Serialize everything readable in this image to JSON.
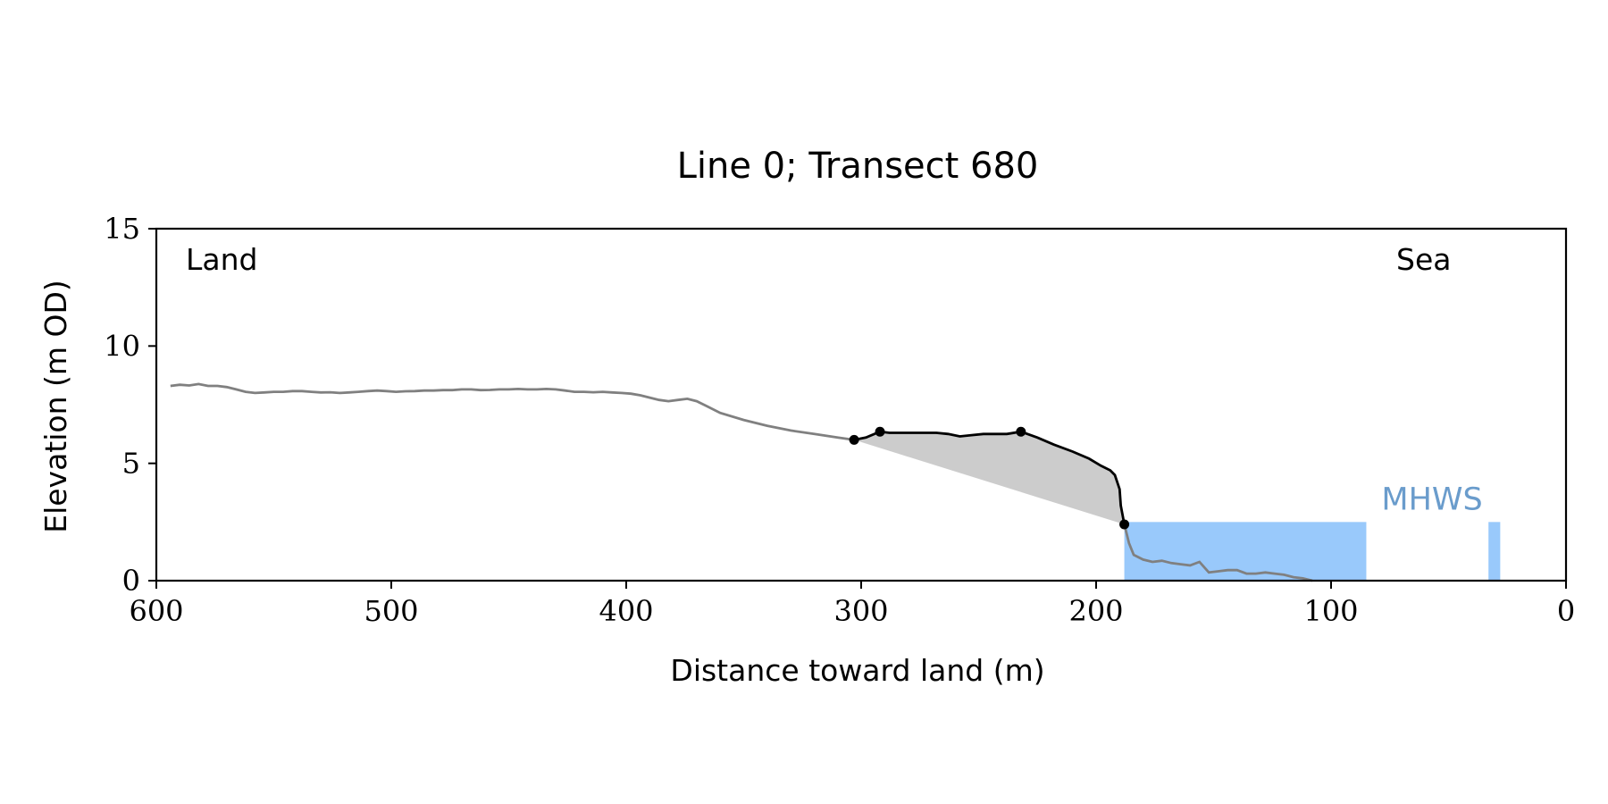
{
  "chart_data": {
    "type": "line",
    "title": "Line 0; Transect 680",
    "xlabel": "Distance toward land (m)",
    "ylabel": "Elevation (m OD)",
    "xlim": [
      600,
      0
    ],
    "ylim": [
      0,
      15
    ],
    "xticks": [
      600,
      500,
      400,
      300,
      200,
      100,
      0
    ],
    "yticks": [
      0,
      5,
      10,
      15
    ],
    "grid": false,
    "annotations": {
      "land": "Land",
      "sea": "Sea",
      "mhws": "MHWS"
    },
    "colors": {
      "profile": "#808080",
      "feature": "#000000",
      "fill": "#cccccc",
      "water": "#99c9fb",
      "mhws_text": "#6a9ccc"
    },
    "mhws_level": 2.5,
    "water_segments": [
      [
        188,
        85
      ],
      [
        33,
        28
      ]
    ],
    "series": [
      {
        "x": [
          594,
          590,
          586,
          582,
          578,
          574,
          570,
          566,
          562,
          558,
          554,
          550,
          546,
          542,
          538,
          534,
          530,
          526,
          522,
          518,
          514,
          510,
          506,
          502,
          498,
          494,
          490,
          486,
          482,
          478,
          474,
          470,
          466,
          462,
          458,
          454,
          450,
          446,
          442,
          438,
          434,
          430,
          426,
          422,
          418,
          414,
          410,
          406,
          402,
          398,
          394,
          390,
          386,
          382,
          378,
          374,
          370,
          366,
          360,
          350,
          340,
          330,
          320,
          310,
          303
        ],
        "y": [
          8.3,
          8.35,
          8.32,
          8.38,
          8.3,
          8.3,
          8.25,
          8.15,
          8.05,
          8.0,
          8.02,
          8.05,
          8.05,
          8.08,
          8.08,
          8.05,
          8.02,
          8.03,
          8.0,
          8.02,
          8.05,
          8.08,
          8.1,
          8.08,
          8.05,
          8.07,
          8.08,
          8.1,
          8.1,
          8.12,
          8.12,
          8.15,
          8.15,
          8.12,
          8.13,
          8.15,
          8.15,
          8.17,
          8.15,
          8.15,
          8.17,
          8.15,
          8.1,
          8.05,
          8.05,
          8.03,
          8.05,
          8.02,
          8.0,
          7.97,
          7.9,
          7.8,
          7.7,
          7.65,
          7.7,
          7.75,
          7.65,
          7.45,
          7.15,
          6.85,
          6.6,
          6.4,
          6.25,
          6.1,
          6.0
        ]
      },
      {
        "x": [
          303,
          298,
          292,
          288,
          283,
          278,
          273,
          268,
          263,
          258,
          253,
          248,
          243,
          238,
          232,
          225,
          218,
          210,
          203,
          198,
          194,
          192,
          190,
          189.5,
          188
        ],
        "y": [
          6.0,
          6.1,
          6.35,
          6.3,
          6.3,
          6.3,
          6.3,
          6.3,
          6.25,
          6.15,
          6.2,
          6.25,
          6.25,
          6.25,
          6.35,
          6.1,
          5.8,
          5.5,
          5.2,
          4.9,
          4.7,
          4.5,
          3.9,
          3.2,
          2.4
        ]
      },
      {
        "x": [
          188,
          186,
          184,
          180,
          176,
          172,
          168,
          164,
          160,
          156,
          152,
          148,
          144,
          140,
          136,
          132,
          128,
          124,
          120,
          116,
          112,
          108
        ],
        "y": [
          2.4,
          1.6,
          1.1,
          0.9,
          0.8,
          0.85,
          0.75,
          0.7,
          0.65,
          0.8,
          0.35,
          0.4,
          0.45,
          0.45,
          0.3,
          0.3,
          0.35,
          0.3,
          0.25,
          0.15,
          0.1,
          0.0
        ]
      }
    ],
    "points": [
      {
        "x": 303,
        "y": 6.0
      },
      {
        "x": 292,
        "y": 6.35
      },
      {
        "x": 232,
        "y": 6.35
      },
      {
        "x": 188,
        "y": 2.4
      }
    ]
  }
}
